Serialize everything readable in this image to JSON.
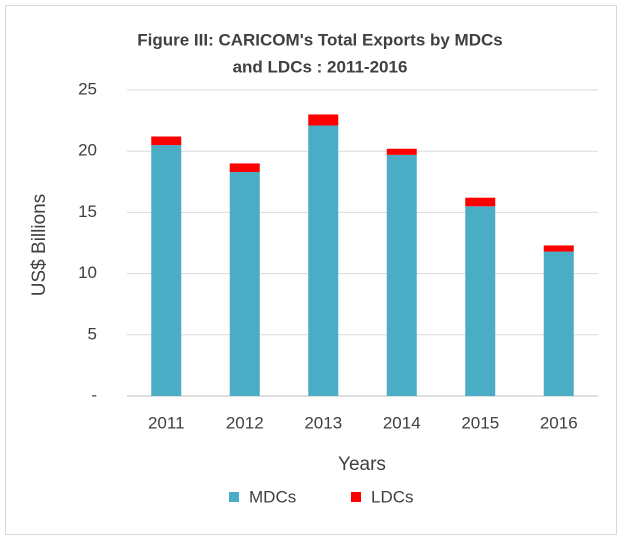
{
  "chart_data": {
    "type": "stacked_bar",
    "title": [
      "Figure III: CARICOM's Total Exports by MDCs",
      "and LDCs : 2011-2016"
    ],
    "x_label": "Years",
    "y_label": "US$ Billions",
    "categories": [
      "2011",
      "2012",
      "2013",
      "2014",
      "2015",
      "2016"
    ],
    "series": [
      {
        "name": "MDCs",
        "color": "#4bacc6",
        "values": [
          20.5,
          18.3,
          22.1,
          19.7,
          15.5,
          11.8
        ]
      },
      {
        "name": "LDCs",
        "color": "#ff0000",
        "values": [
          0.7,
          0.7,
          0.9,
          0.5,
          0.7,
          0.5
        ]
      }
    ],
    "ylim": [
      0,
      25
    ],
    "yticks": [
      {
        "value": 0,
        "label": "-"
      },
      5,
      10,
      15,
      20,
      25
    ],
    "grid": true,
    "legend": "bottom"
  }
}
